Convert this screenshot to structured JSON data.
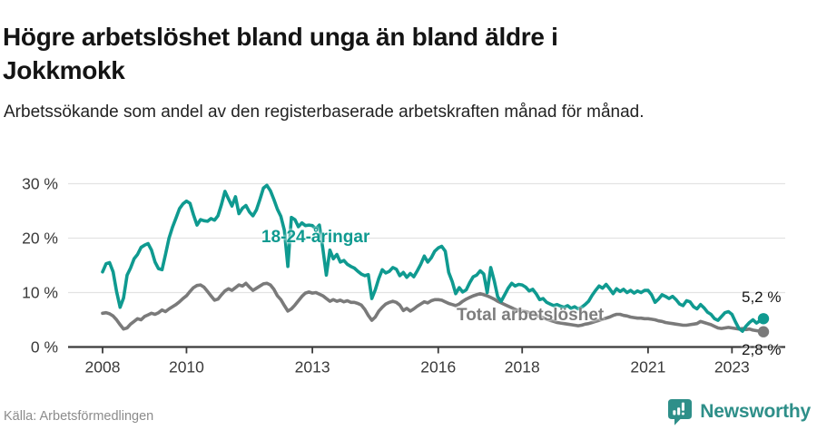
{
  "header": {
    "title": "Högre arbetslöshet bland unga än bland äldre i Jokkmokk",
    "subtitle": "Arbetssökande som andel av den registerbaserade arbetskraften månad för månad."
  },
  "colors": {
    "youth_line": "#0f9a90",
    "total_line": "#7a7a7a",
    "total_label": "#7d7d7d",
    "grid": "#e3e3e3",
    "axis": "#3b3b3b",
    "tick_text": "#3a3a3a",
    "end_label_text": "#141414",
    "brand_teal": "#2e8f89"
  },
  "chart_data": {
    "type": "line",
    "title": "Högre arbetslöshet bland unga än bland äldre i Jokkmokk",
    "xlabel": "",
    "ylabel": "Arbetssökande som andel av den registerbaserade arbetskraften",
    "x_start_month": "2008-01",
    "x_end_month": "2023-10",
    "ylim": [
      0,
      32
    ],
    "grid": "horizontal",
    "legend_position": "inline-labels",
    "y_ticks": [
      {
        "value": 0,
        "label": "0 %"
      },
      {
        "value": 10,
        "label": "10 %"
      },
      {
        "value": 20,
        "label": "20 %"
      },
      {
        "value": 30,
        "label": "30 %"
      }
    ],
    "x_ticks": [
      {
        "year": 2008,
        "label": "2008"
      },
      {
        "year": 2010,
        "label": "2010"
      },
      {
        "year": 2013,
        "label": "2013"
      },
      {
        "year": 2016,
        "label": "2016"
      },
      {
        "year": 2018,
        "label": "2018"
      },
      {
        "year": 2021,
        "label": "2021"
      },
      {
        "year": 2023,
        "label": "2023"
      }
    ],
    "series": [
      {
        "name": "Total arbetslöshet",
        "end_label": "2,8 %",
        "values": [
          6.2,
          6.3,
          6.1,
          5.7,
          5.0,
          4.1,
          3.3,
          3.5,
          4.2,
          4.7,
          5.2,
          5.0,
          5.6,
          5.9,
          6.2,
          6.0,
          6.3,
          6.8,
          6.5,
          7.0,
          7.4,
          7.8,
          8.3,
          8.9,
          9.4,
          10.2,
          10.9,
          11.3,
          11.4,
          11.0,
          10.2,
          9.4,
          8.6,
          8.8,
          9.6,
          10.3,
          10.7,
          10.4,
          10.9,
          11.4,
          11.2,
          11.7,
          11.0,
          10.4,
          10.8,
          11.2,
          11.6,
          11.7,
          11.4,
          10.6,
          9.4,
          8.7,
          7.6,
          6.6,
          7.0,
          7.7,
          8.5,
          9.3,
          9.9,
          10.1,
          9.9,
          10.0,
          9.7,
          9.4,
          8.9,
          8.4,
          8.7,
          8.4,
          8.6,
          8.3,
          8.5,
          8.2,
          8.2,
          8.0,
          7.7,
          6.9,
          5.8,
          4.9,
          5.5,
          6.6,
          7.3,
          7.9,
          8.2,
          8.4,
          8.2,
          7.7,
          6.7,
          7.1,
          6.6,
          7.0,
          7.5,
          7.9,
          8.3,
          8.1,
          8.5,
          8.7,
          8.7,
          8.6,
          8.3,
          8.0,
          7.8,
          7.6,
          7.9,
          8.4,
          8.8,
          9.1,
          9.4,
          9.6,
          9.8,
          9.6,
          9.4,
          9.1,
          8.8,
          8.4,
          8.1,
          7.8,
          7.5,
          7.2,
          6.9,
          6.7,
          6.6,
          6.5,
          6.3,
          6.1,
          5.8,
          5.6,
          5.4,
          5.1,
          4.9,
          4.7,
          4.5,
          4.4,
          4.3,
          4.2,
          4.1,
          4.0,
          3.9,
          4.0,
          4.2,
          4.3,
          4.5,
          4.7,
          4.9,
          5.1,
          5.3,
          5.5,
          5.8,
          6.0,
          6.0,
          5.8,
          5.7,
          5.5,
          5.4,
          5.3,
          5.3,
          5.2,
          5.2,
          5.1,
          5.0,
          4.8,
          4.7,
          4.5,
          4.4,
          4.3,
          4.2,
          4.1,
          4.0,
          4.0,
          4.1,
          4.2,
          4.3,
          4.7,
          4.5,
          4.3,
          4.1,
          3.8,
          3.5,
          3.4,
          3.5,
          3.6,
          3.5,
          3.4,
          3.3,
          3.4,
          3.2,
          3.3,
          3.1,
          3.0,
          2.9,
          2.8
        ]
      },
      {
        "name": "18-24-åringar",
        "end_label": "5,2 %",
        "values": [
          13.8,
          15.3,
          15.5,
          13.8,
          10.2,
          7.3,
          9.0,
          13.2,
          14.5,
          16.2,
          17.0,
          18.3,
          18.7,
          19.0,
          17.8,
          15.6,
          14.4,
          14.2,
          17.0,
          20.0,
          22.0,
          23.7,
          25.4,
          26.3,
          26.8,
          26.4,
          24.3,
          22.4,
          23.4,
          23.2,
          23.1,
          23.6,
          23.3,
          24.1,
          26.2,
          28.6,
          27.2,
          25.9,
          27.6,
          24.5,
          25.5,
          26.0,
          24.8,
          24.1,
          25.2,
          27.1,
          29.2,
          29.7,
          28.7,
          27.1,
          25.3,
          24.0,
          21.4,
          14.8,
          23.8,
          23.4,
          22.1,
          22.8,
          22.3,
          22.4,
          22.3,
          21.7,
          22.4,
          18.0,
          13.2,
          17.8,
          16.2,
          17.0,
          15.6,
          15.9,
          15.2,
          14.8,
          14.5,
          13.9,
          13.4,
          13.1,
          13.3,
          8.9,
          10.5,
          12.6,
          14.2,
          13.6,
          13.9,
          14.6,
          14.3,
          13.1,
          13.7,
          12.8,
          13.5,
          12.9,
          14.0,
          15.2,
          16.7,
          15.6,
          16.4,
          17.6,
          18.2,
          18.5,
          17.6,
          13.7,
          12.0,
          9.8,
          10.9,
          10.1,
          10.5,
          11.8,
          12.9,
          13.2,
          14.0,
          13.4,
          10.0,
          14.6,
          12.2,
          9.2,
          8.4,
          9.6,
          10.8,
          11.7,
          11.2,
          11.5,
          11.4,
          11.0,
          10.3,
          10.6,
          9.8,
          8.7,
          8.9,
          8.2,
          7.9,
          7.6,
          7.8,
          7.5,
          7.3,
          7.6,
          7.1,
          7.4,
          7.0,
          7.3,
          7.8,
          8.4,
          9.5,
          10.4,
          11.2,
          10.8,
          11.5,
          10.7,
          9.8,
          10.7,
          10.2,
          10.6,
          10.0,
          10.4,
          9.9,
          10.3,
          10.0,
          10.4,
          10.4,
          9.6,
          8.2,
          8.8,
          9.6,
          9.3,
          8.9,
          9.3,
          8.7,
          7.9,
          7.6,
          8.5,
          8.3,
          7.4,
          7.0,
          7.8,
          7.2,
          6.4,
          6.0,
          5.2,
          4.9,
          5.6,
          6.3,
          6.5,
          6.0,
          4.6,
          3.4,
          2.9,
          3.8,
          4.5,
          5.0,
          4.4,
          4.8,
          5.2
        ]
      }
    ]
  },
  "footer": {
    "source": "Källa: Arbetsförmedlingen",
    "brand_name": "Newsworthy"
  }
}
